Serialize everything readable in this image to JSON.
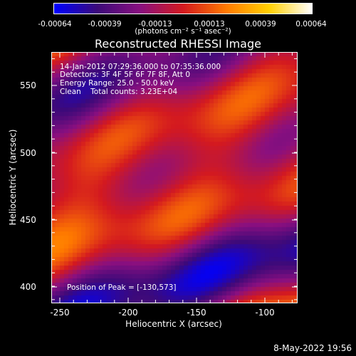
{
  "colorbar": {
    "ticks": [
      "-0.00064",
      "-0.00039",
      "-0.00013",
      "0.00013",
      "0.00039",
      "0.00064"
    ],
    "unit_label": "(photons cm⁻² s⁻¹ asec⁻²)",
    "colormap": [
      "#0000ff",
      "#3d0a7a",
      "#8a1080",
      "#d41a20",
      "#ff7a00",
      "#ffd000",
      "#ffffff"
    ]
  },
  "title": "Reconstructed RHESSI Image",
  "info": {
    "time_range": "14-Jan-2012 07:29:36.000 to 07:35:36.000",
    "detectors": "Detectors: 3F 4F 5F 6F 7F 8F, Att 0",
    "energy": "Energy Range: 25.0 - 50.0 keV",
    "clean": "Clean    Total counts: 3.23E+04",
    "peak": "Position of Peak = [-130,573]"
  },
  "axes": {
    "xlabel": "Heliocentric X (arcsec)",
    "ylabel": "Heliocentric Y (arcsec)",
    "xticks": [
      "-250",
      "-200",
      "-150",
      "-100"
    ],
    "yticks": [
      "550",
      "500",
      "450",
      "400"
    ]
  },
  "timestamp": "8-May-2022 19:56"
}
